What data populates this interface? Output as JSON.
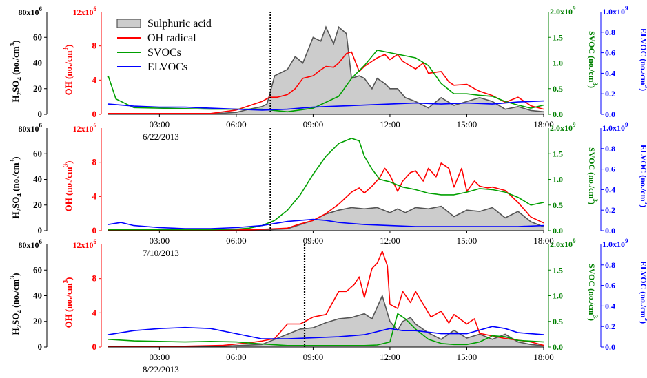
{
  "chart_data": [
    {
      "type": "line",
      "date_label": "",
      "xlim": [
        "01:00",
        "18:00"
      ],
      "x_ticks": [
        "03:00",
        "06:00",
        "09:00",
        "12:00",
        "15:00",
        "18:00"
      ],
      "vline": "07:20",
      "axes": {
        "h2so4": {
          "label_main": "H",
          "label_sub1": "2",
          "label_mid": "SO",
          "label_sub2": "4",
          "label_tail": " (no./cm",
          "label_sup": "3",
          "label_end": ")",
          "ylim": [
            0,
            80
          ],
          "exponent": "80x10",
          "exp_power": "6",
          "ticks": [
            0,
            20,
            40,
            60
          ],
          "color": "#000000"
        },
        "oh": {
          "label": "OH (no./cm",
          "label_sup": "3",
          "label_end": ")",
          "ylim": [
            0,
            12
          ],
          "exponent": "12x10",
          "exp_power": "6",
          "ticks": [
            0,
            4,
            8
          ],
          "color": "#ff0000"
        },
        "svoc": {
          "label": "SVOC (no./cm",
          "label_sup": "3",
          "label_end": ")",
          "ylim": [
            0,
            2.0
          ],
          "top_label": "2.0x10",
          "exp_power": "9",
          "ticks": [
            "0.0",
            "0.5",
            "1.0",
            "1.5"
          ],
          "color": "#008000"
        },
        "elvoc": {
          "label": "ELVOC (no./cm",
          "label_sup": "3",
          "label_end": ")",
          "ylim": [
            0,
            1.0
          ],
          "top_label": "1.0x10",
          "exp_power": "9",
          "ticks": [
            "0.0",
            "0.2",
            "0.4",
            "0.6",
            "0.8"
          ],
          "color": "#0000ff"
        }
      },
      "legend": [
        {
          "name": "Sulphuric acid",
          "color": "#555555",
          "fill": "#cccccc",
          "kind": "area"
        },
        {
          "name": "OH radical",
          "color": "#ff0000",
          "kind": "line"
        },
        {
          "name": "SVOCs",
          "color": "#00a000",
          "kind": "line"
        },
        {
          "name": "ELVOCs",
          "color": "#0000ff",
          "kind": "line"
        }
      ],
      "series": [
        {
          "name": "Sulphuric acid",
          "axis": "h2so4",
          "x": [
            1.0,
            5.0,
            6.0,
            6.5,
            7.0,
            7.2,
            7.5,
            8.0,
            8.3,
            8.6,
            9.0,
            9.3,
            9.5,
            9.8,
            10.0,
            10.3,
            10.5,
            10.8,
            11.0,
            11.3,
            11.5,
            11.8,
            12.0,
            12.3,
            12.6,
            13.0,
            13.5,
            14.0,
            14.5,
            15.0,
            15.5,
            16.0,
            16.5,
            17.0,
            17.5,
            18.0
          ],
          "values": [
            0.5,
            0.3,
            1.5,
            4,
            6,
            8,
            30,
            35,
            45,
            40,
            60,
            57,
            68,
            55,
            68,
            63,
            28,
            30,
            28,
            20,
            28,
            24,
            20,
            20,
            13,
            10,
            5,
            13,
            7,
            10,
            13,
            10,
            4,
            6,
            3,
            2
          ]
        },
        {
          "name": "OH radical",
          "axis": "oh",
          "x": [
            1.0,
            5.0,
            6.0,
            6.5,
            7.0,
            7.3,
            7.6,
            8.0,
            8.3,
            8.6,
            9.0,
            9.3,
            9.5,
            9.8,
            10.0,
            10.3,
            10.5,
            10.8,
            11.0,
            11.3,
            11.5,
            11.8,
            12.0,
            12.3,
            12.5,
            13.0,
            13.3,
            13.5,
            14.0,
            14.3,
            14.5,
            15.0,
            15.3,
            15.5,
            16.0,
            16.5,
            17.0,
            17.5,
            18.0
          ],
          "values": [
            0.1,
            0.1,
            0.5,
            1.0,
            1.5,
            2.0,
            2.0,
            2.3,
            3.0,
            4.2,
            4.5,
            5.2,
            5.6,
            5.5,
            6.0,
            7.1,
            7.3,
            5.0,
            5.6,
            6.2,
            6.6,
            7.0,
            6.4,
            7.0,
            6.2,
            5.3,
            6.0,
            4.8,
            5.0,
            3.8,
            3.4,
            3.5,
            3.0,
            2.7,
            2.2,
            1.4,
            2.0,
            1.0,
            0.6
          ]
        },
        {
          "name": "SVOCs",
          "axis": "svoc",
          "x": [
            1.0,
            1.3,
            2.0,
            3.0,
            4.0,
            5.0,
            6.0,
            7.0,
            8.0,
            9.0,
            10.0,
            10.5,
            11.0,
            11.5,
            12.0,
            13.0,
            13.5,
            14.0,
            14.5,
            15.0,
            15.5,
            16.0,
            16.5,
            17.0,
            17.5,
            18.0
          ],
          "values": [
            0.75,
            0.3,
            0.13,
            0.12,
            0.11,
            0.1,
            0.1,
            0.1,
            0.05,
            0.12,
            0.35,
            0.7,
            0.95,
            1.25,
            1.2,
            1.1,
            0.95,
            0.6,
            0.4,
            0.4,
            0.37,
            0.35,
            0.25,
            0.18,
            0.12,
            0.18
          ]
        },
        {
          "name": "ELVOCs",
          "axis": "elvoc",
          "x": [
            1.0,
            2.0,
            3.0,
            4.0,
            5.0,
            6.0,
            7.0,
            8.0,
            9.0,
            10.0,
            11.0,
            12.0,
            13.0,
            14.0,
            15.0,
            16.0,
            17.0,
            18.0
          ],
          "values": [
            0.1,
            0.08,
            0.07,
            0.07,
            0.06,
            0.05,
            0.04,
            0.05,
            0.07,
            0.08,
            0.09,
            0.1,
            0.11,
            0.1,
            0.11,
            0.1,
            0.12,
            0.13
          ]
        }
      ]
    },
    {
      "type": "line",
      "date_label": "6/22/2013",
      "xlim": [
        "01:00",
        "18:00"
      ],
      "x_ticks": [
        "03:00",
        "06:00",
        "09:00",
        "12:00",
        "15:00",
        "18:00"
      ],
      "vline": "07:20",
      "axes": {
        "h2so4": {
          "label_main": "H",
          "label_sub1": "2",
          "label_mid": "SO",
          "label_sub2": "4",
          "label_tail": " (no./cm",
          "label_sup": "3",
          "label_end": ")",
          "ylim": [
            0,
            80
          ],
          "exponent": "80x10",
          "exp_power": "6",
          "ticks": [
            0,
            20,
            40,
            60
          ],
          "color": "#000000"
        },
        "oh": {
          "label": "OH (no./cm",
          "label_sup": "3",
          "label_end": ")",
          "ylim": [
            0,
            12
          ],
          "exponent": "12x10",
          "exp_power": "6",
          "ticks": [
            0,
            4,
            8
          ],
          "color": "#ff0000"
        },
        "svoc": {
          "label": "SVOC (no./cm",
          "label_sup": "3",
          "label_end": ")",
          "ylim": [
            0,
            2.0
          ],
          "top_label": "2.0x10",
          "exp_power": "9",
          "ticks": [
            "0.0",
            "0.5",
            "1.0",
            "1.5"
          ],
          "color": "#008000"
        },
        "elvoc": {
          "label": "ELVOC (no./cm",
          "label_sup": "3",
          "label_end": ")",
          "ylim": [
            0,
            1.0
          ],
          "top_label": "1.0x10",
          "exp_power": "9",
          "ticks": [
            "0.0",
            "0.2",
            "0.4",
            "0.6",
            "0.8"
          ],
          "color": "#0000ff"
        }
      },
      "series": [
        {
          "name": "Sulphuric acid",
          "axis": "h2so4",
          "x": [
            1.0,
            5.0,
            7.0,
            8.0,
            9.0,
            9.5,
            10.0,
            10.5,
            11.0,
            11.5,
            12.0,
            12.3,
            12.6,
            13.0,
            13.5,
            14.0,
            14.5,
            15.0,
            15.5,
            16.0,
            16.5,
            17.0,
            17.5,
            18.0
          ],
          "values": [
            0.2,
            0.2,
            0.5,
            1.5,
            8,
            13,
            16,
            18,
            17,
            18,
            14,
            17,
            14,
            18,
            17,
            19,
            11,
            16,
            15,
            18,
            10,
            15,
            7,
            3
          ]
        },
        {
          "name": "OH radical",
          "axis": "oh",
          "x": [
            1.0,
            5.0,
            6.5,
            7.3,
            8.0,
            8.5,
            9.0,
            9.5,
            10.0,
            10.5,
            10.8,
            11.0,
            11.3,
            11.6,
            11.8,
            12.0,
            12.3,
            12.5,
            12.8,
            13.0,
            13.3,
            13.5,
            13.8,
            14.0,
            14.3,
            14.5,
            14.8,
            15.0,
            15.3,
            15.5,
            15.8,
            16.0,
            16.5,
            17.0,
            17.5,
            18.0
          ],
          "values": [
            0.1,
            0.1,
            0.1,
            0.2,
            0.3,
            0.8,
            1.2,
            2.0,
            3.1,
            4.5,
            5.0,
            4.4,
            5.2,
            6.2,
            7.3,
            6.5,
            4.6,
            5.8,
            6.8,
            7.0,
            5.8,
            7.3,
            6.3,
            7.9,
            7.3,
            5.1,
            7.3,
            4.6,
            5.8,
            5.2,
            5.0,
            5.1,
            4.7,
            3.3,
            1.6,
            0.9
          ]
        },
        {
          "name": "SVOCs",
          "axis": "svoc",
          "x": [
            1.0,
            5.0,
            6.0,
            6.5,
            7.0,
            7.5,
            8.0,
            8.5,
            9.0,
            9.5,
            10.0,
            10.5,
            10.8,
            11.0,
            11.3,
            11.6,
            12.0,
            12.5,
            13.0,
            13.5,
            14.0,
            14.5,
            15.0,
            15.5,
            16.0,
            16.5,
            17.0,
            17.5,
            18.0
          ],
          "values": [
            0.02,
            0.02,
            0.03,
            0.05,
            0.1,
            0.2,
            0.4,
            0.7,
            1.1,
            1.45,
            1.7,
            1.8,
            1.75,
            1.45,
            1.2,
            1.0,
            0.95,
            0.85,
            0.8,
            0.73,
            0.7,
            0.7,
            0.75,
            0.82,
            0.8,
            0.75,
            0.65,
            0.5,
            0.55
          ]
        },
        {
          "name": "ELVOCs",
          "axis": "elvoc",
          "x": [
            1.0,
            1.5,
            2.0,
            3.0,
            4.0,
            5.0,
            6.0,
            7.0,
            8.0,
            9.0,
            9.5,
            10.0,
            11.0,
            12.0,
            13.0,
            14.0,
            15.0,
            16.0,
            17.0,
            18.0
          ],
          "values": [
            0.06,
            0.08,
            0.05,
            0.03,
            0.02,
            0.02,
            0.03,
            0.05,
            0.09,
            0.11,
            0.1,
            0.08,
            0.06,
            0.05,
            0.04,
            0.04,
            0.04,
            0.04,
            0.04,
            0.05
          ]
        }
      ]
    },
    {
      "type": "line",
      "date_label": "7/10/2013",
      "xlim": [
        "01:00",
        "18:00"
      ],
      "x_ticks": [
        "03:00",
        "06:00",
        "09:00",
        "12:00",
        "15:00",
        "18:00"
      ],
      "vline": "08:40",
      "bottom_date": "8/22/2013",
      "axes": {
        "h2so4": {
          "label_main": "H",
          "label_sub1": "2",
          "label_mid": "SO",
          "label_sub2": "4",
          "label_tail": " (no./cm",
          "label_sup": "3",
          "label_end": ")",
          "ylim": [
            0,
            80
          ],
          "exponent": "80x10",
          "exp_power": "6",
          "ticks": [
            0,
            20,
            40,
            60
          ],
          "color": "#000000"
        },
        "oh": {
          "label": "OH (no./cm",
          "label_sup": "3",
          "label_end": ")",
          "ylim": [
            0,
            12
          ],
          "exponent": "12x10",
          "exp_power": "6",
          "ticks": [
            0,
            4,
            8
          ],
          "color": "#ff0000"
        },
        "svoc": {
          "label": "SVOC (no./cm",
          "label_sup": "3",
          "label_end": ")",
          "ylim": [
            0,
            2.0
          ],
          "top_label": "2.0x10",
          "exp_power": "9",
          "ticks": [
            "0.0",
            "0.5",
            "1.0",
            "1.5"
          ],
          "color": "#008000"
        },
        "elvoc": {
          "label": "ELVOC (no./cm",
          "label_sup": "3",
          "label_end": ")",
          "ylim": [
            0,
            1.0
          ],
          "top_label": "1.0x10",
          "exp_power": "9",
          "ticks": [
            "0.0",
            "0.2",
            "0.4",
            "0.6",
            "0.8"
          ],
          "color": "#0000ff"
        }
      },
      "series": [
        {
          "name": "Sulphuric acid",
          "axis": "h2so4",
          "x": [
            1.0,
            5.0,
            7.0,
            8.0,
            8.5,
            9.0,
            9.5,
            10.0,
            10.5,
            11.0,
            11.3,
            11.7,
            12.0,
            12.3,
            12.5,
            12.8,
            13.0,
            13.5,
            14.0,
            14.5,
            15.0,
            15.5,
            16.0,
            16.5,
            17.0,
            17.5,
            18.0
          ],
          "values": [
            0.2,
            0.2,
            2,
            10,
            14,
            15,
            19,
            22,
            23,
            26,
            22,
            40,
            20,
            13,
            20,
            23,
            18,
            11,
            6,
            13,
            7,
            10,
            6,
            10,
            4,
            2,
            1
          ]
        },
        {
          "name": "OH radical",
          "axis": "oh",
          "x": [
            1.0,
            4.0,
            5.5,
            6.5,
            7.0,
            7.5,
            8.0,
            8.5,
            9.0,
            9.5,
            10.0,
            10.3,
            10.6,
            10.8,
            11.0,
            11.3,
            11.5,
            11.7,
            11.9,
            12.0,
            12.3,
            12.5,
            12.8,
            13.0,
            13.3,
            13.6,
            14.0,
            14.3,
            14.5,
            15.0,
            15.3,
            15.5,
            16.0,
            16.5,
            17.0,
            17.5,
            18.0
          ],
          "values": [
            0.05,
            0.1,
            0.2,
            0.5,
            0.7,
            1.0,
            2.7,
            2.7,
            3.5,
            3.8,
            6.5,
            6.5,
            7.3,
            8.2,
            5.8,
            9.2,
            9.8,
            11.2,
            9.5,
            5.0,
            4.5,
            6.5,
            5.2,
            6.5,
            5.0,
            3.5,
            4.2,
            2.8,
            3.8,
            2.7,
            3.3,
            1.6,
            1.3,
            1.0,
            0.8,
            0.6,
            0.2
          ]
        },
        {
          "name": "SVOCs",
          "axis": "svoc",
          "x": [
            1.0,
            2.0,
            3.0,
            4.0,
            5.0,
            6.0,
            7.0,
            8.0,
            9.0,
            10.0,
            11.0,
            11.5,
            12.0,
            12.3,
            12.6,
            13.0,
            13.5,
            14.0,
            14.5,
            15.0,
            15.5,
            16.0,
            16.5,
            17.0,
            18.0
          ],
          "values": [
            0.15,
            0.12,
            0.11,
            0.1,
            0.11,
            0.1,
            0.06,
            0.03,
            0.03,
            0.03,
            0.03,
            0.04,
            0.1,
            0.65,
            0.55,
            0.35,
            0.15,
            0.07,
            0.05,
            0.05,
            0.1,
            0.22,
            0.2,
            0.13,
            0.1
          ]
        },
        {
          "name": "ELVOCs",
          "axis": "elvoc",
          "x": [
            1.0,
            2.0,
            3.0,
            4.0,
            5.0,
            6.0,
            7.0,
            8.0,
            9.0,
            10.0,
            11.0,
            12.0,
            12.5,
            13.0,
            14.0,
            15.0,
            16.0,
            16.5,
            17.0,
            18.0
          ],
          "values": [
            0.12,
            0.16,
            0.18,
            0.19,
            0.18,
            0.13,
            0.08,
            0.08,
            0.09,
            0.1,
            0.12,
            0.18,
            0.16,
            0.16,
            0.13,
            0.13,
            0.2,
            0.18,
            0.14,
            0.12
          ]
        }
      ]
    }
  ]
}
